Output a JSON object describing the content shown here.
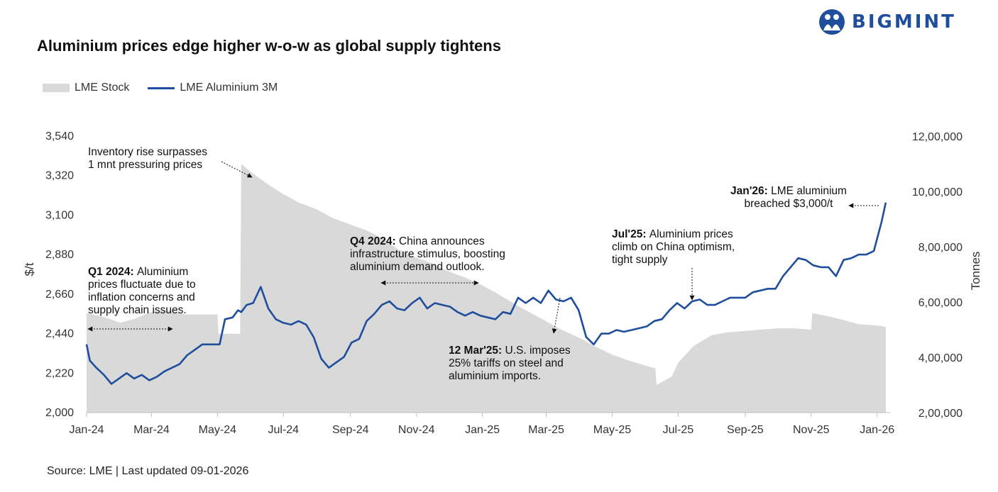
{
  "brand": {
    "name": "BIGMINT",
    "color": "#1f4e9c"
  },
  "title": "Aluminium prices edge higher w-o-w as global supply tightens",
  "source": "Source: LME | Last updated 09-01-2026",
  "chart_data": {
    "type": "line",
    "legend": [
      "LME Stock",
      "LME Aluminium 3M"
    ],
    "legend_position": "top-left",
    "y_left": {
      "label": "$/t",
      "range": [
        2000,
        3540
      ],
      "ticks": [
        "2,000",
        "2,220",
        "2,440",
        "2,660",
        "2,880",
        "3,100",
        "3,320",
        "3,540"
      ]
    },
    "y_right": {
      "label": "Tonnes",
      "range": [
        200000,
        1200000
      ],
      "ticks": [
        "2,00,000",
        "4,00,000",
        "6,00,000",
        "8,00,000",
        "10,00,000",
        "12,00,000"
      ]
    },
    "x_ticks": [
      "Jan-24",
      "Mar-24",
      "May-24",
      "Jul-24",
      "Sep-24",
      "Nov-24",
      "Jan-25",
      "Mar-25",
      "May-25",
      "Jul-25",
      "Sep-25",
      "Nov-25",
      "Jan-26"
    ],
    "grid": false,
    "colors": {
      "price": "#1f4e9c",
      "stock": "#d9d9d9"
    },
    "series": [
      {
        "name": "LME Aluminium 3M",
        "axis": "left",
        "x": [
          "2024-01-01",
          "2024-01-04",
          "2024-01-10",
          "2024-01-17",
          "2024-01-24",
          "2024-01-31",
          "2024-02-07",
          "2024-02-14",
          "2024-02-21",
          "2024-02-28",
          "2024-03-06",
          "2024-03-13",
          "2024-03-20",
          "2024-03-27",
          "2024-04-03",
          "2024-04-10",
          "2024-04-17",
          "2024-04-24",
          "2024-05-01",
          "2024-05-03",
          "2024-05-08",
          "2024-05-15",
          "2024-05-20",
          "2024-05-23",
          "2024-05-28",
          "2024-06-03",
          "2024-06-10",
          "2024-06-17",
          "2024-06-24",
          "2024-07-01",
          "2024-07-08",
          "2024-07-15",
          "2024-07-22",
          "2024-07-29",
          "2024-08-05",
          "2024-08-12",
          "2024-08-19",
          "2024-08-26",
          "2024-09-02",
          "2024-09-09",
          "2024-09-16",
          "2024-09-23",
          "2024-09-30",
          "2024-10-07",
          "2024-10-14",
          "2024-10-21",
          "2024-10-28",
          "2024-11-04",
          "2024-11-11",
          "2024-11-18",
          "2024-11-25",
          "2024-12-02",
          "2024-12-09",
          "2024-12-16",
          "2024-12-23",
          "2024-12-30",
          "2025-01-06",
          "2025-01-13",
          "2025-01-20",
          "2025-01-27",
          "2025-02-03",
          "2025-02-10",
          "2025-02-17",
          "2025-02-24",
          "2025-03-03",
          "2025-03-10",
          "2025-03-17",
          "2025-03-24",
          "2025-03-31",
          "2025-04-07",
          "2025-04-14",
          "2025-04-21",
          "2025-04-28",
          "2025-05-05",
          "2025-05-12",
          "2025-05-19",
          "2025-05-26",
          "2025-06-02",
          "2025-06-09",
          "2025-06-16",
          "2025-06-23",
          "2025-06-30",
          "2025-07-07",
          "2025-07-14",
          "2025-07-21",
          "2025-07-28",
          "2025-08-04",
          "2025-08-11",
          "2025-08-18",
          "2025-08-25",
          "2025-09-01",
          "2025-09-08",
          "2025-09-15",
          "2025-09-22",
          "2025-09-29",
          "2025-10-06",
          "2025-10-13",
          "2025-10-20",
          "2025-10-27",
          "2025-11-03",
          "2025-11-10",
          "2025-11-17",
          "2025-11-24",
          "2025-12-01",
          "2025-12-08",
          "2025-12-15",
          "2025-12-22",
          "2025-12-29",
          "2026-01-05",
          "2026-01-09"
        ],
        "values": [
          2380,
          2290,
          2250,
          2210,
          2160,
          2190,
          2220,
          2190,
          2210,
          2180,
          2200,
          2230,
          2250,
          2270,
          2320,
          2350,
          2380,
          2380,
          2380,
          2380,
          2520,
          2530,
          2570,
          2560,
          2600,
          2610,
          2700,
          2580,
          2520,
          2500,
          2490,
          2510,
          2490,
          2420,
          2300,
          2250,
          2280,
          2310,
          2390,
          2410,
          2510,
          2550,
          2600,
          2620,
          2580,
          2570,
          2610,
          2640,
          2580,
          2610,
          2600,
          2590,
          2560,
          2540,
          2560,
          2540,
          2530,
          2520,
          2560,
          2550,
          2640,
          2610,
          2640,
          2610,
          2680,
          2630,
          2620,
          2640,
          2570,
          2420,
          2380,
          2440,
          2440,
          2460,
          2450,
          2460,
          2470,
          2480,
          2510,
          2520,
          2570,
          2610,
          2580,
          2620,
          2630,
          2600,
          2600,
          2620,
          2640,
          2640,
          2640,
          2670,
          2680,
          2690,
          2690,
          2760,
          2810,
          2860,
          2850,
          2820,
          2810,
          2810,
          2760,
          2850,
          2860,
          2880,
          2880,
          2900,
          3060,
          3170
        ]
      },
      {
        "name": "LME Stock",
        "axis": "right",
        "type": "area",
        "x": [
          "2024-01-01",
          "2024-01-18",
          "2024-02-01",
          "2024-02-15",
          "2024-03-01",
          "2024-03-20",
          "2024-04-01",
          "2024-04-20",
          "2024-05-01",
          "2024-05-02",
          "2024-05-22",
          "2024-05-23",
          "2024-06-01",
          "2024-06-15",
          "2024-07-01",
          "2024-07-15",
          "2024-08-01",
          "2024-08-15",
          "2024-09-01",
          "2024-09-15",
          "2024-10-01",
          "2024-10-15",
          "2024-11-01",
          "2024-11-15",
          "2024-12-01",
          "2024-12-15",
          "2025-01-01",
          "2025-01-15",
          "2025-02-01",
          "2025-02-15",
          "2025-03-01",
          "2025-03-15",
          "2025-04-01",
          "2025-04-15",
          "2025-05-01",
          "2025-05-15",
          "2025-06-01",
          "2025-06-10",
          "2025-06-11",
          "2025-06-25",
          "2025-07-01",
          "2025-07-15",
          "2025-08-01",
          "2025-08-15",
          "2025-09-01",
          "2025-09-15",
          "2025-10-01",
          "2025-10-15",
          "2025-11-01",
          "2025-11-02",
          "2025-11-15",
          "2025-12-01",
          "2025-12-15",
          "2026-01-01",
          "2026-01-09"
        ],
        "values": [
          560000,
          545000,
          525000,
          540000,
          565000,
          570000,
          555000,
          555000,
          555000,
          485000,
          485000,
          1100000,
          1070000,
          1030000,
          990000,
          960000,
          935000,
          905000,
          880000,
          860000,
          830000,
          790000,
          760000,
          740000,
          710000,
          690000,
          660000,
          630000,
          590000,
          560000,
          530000,
          500000,
          470000,
          440000,
          410000,
          390000,
          370000,
          360000,
          300000,
          330000,
          380000,
          440000,
          480000,
          490000,
          495000,
          500000,
          505000,
          505000,
          500000,
          560000,
          550000,
          535000,
          520000,
          515000,
          510000
        ]
      }
    ],
    "annotations": [
      {
        "lines": [
          "Inventory rise surpasses",
          "1 mnt pressuring prices"
        ]
      },
      {
        "bold": "Q1 2024:",
        "lines": [
          "Aluminium",
          "prices fluctuate due to",
          "inflation concerns and",
          "supply chain issues."
        ]
      },
      {
        "bold": "Q4 2024:",
        "lines": [
          "China announces",
          "infrastructure stimulus, boosting",
          "aluminium demand outlook."
        ]
      },
      {
        "bold": "12 Mar'25:",
        "lines": [
          "U.S. imposes",
          "25% tariffs on steel and",
          "aluminium imports."
        ]
      },
      {
        "bold": "Jul'25:",
        "lines": [
          "Aluminium prices",
          "climb on China optimism,",
          "tight supply"
        ]
      },
      {
        "bold": "Jan'26:",
        "lines": [
          "LME aluminium",
          "breached $3,000/t"
        ]
      }
    ]
  }
}
